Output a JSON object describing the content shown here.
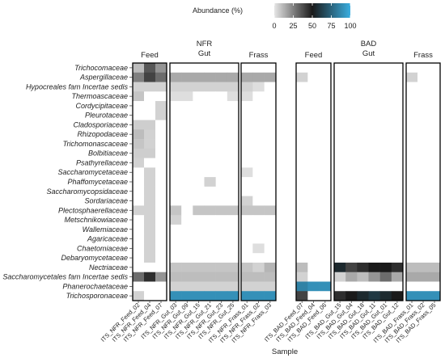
{
  "chart_data": {
    "type": "heatmap",
    "title": "",
    "xlabel": "Sample",
    "ylabel": "",
    "legend": {
      "title": "Abundance (%)",
      "ticks": [
        0,
        25,
        50,
        75,
        100
      ],
      "range": [
        0,
        100
      ],
      "colors": {
        "low": "#e6e6e6",
        "mid": "#1a1a1a",
        "high": "#3aaee0"
      },
      "placement": "top"
    },
    "rows": [
      "Trichocomaceae",
      "Aspergillaceae",
      "Hypocreales fam Incertae sedis",
      "Thermoascaceae",
      "Cordycipitaceae",
      "Pleurotaceae",
      "Cladosporiaceae",
      "Rhizopodaceae",
      "Trichomonascaceae",
      "Bolbitiaceae",
      "Psathyrellaceae",
      "Saccharomycetaceae",
      "Phaffomycetaceae",
      "Saccharomycopsidaceae",
      "Sordariaceae",
      "Plectosphaerellaceae",
      "Metschnikowiaceae",
      "Wallemiaceae",
      "Agaricaceae",
      "Chaetomiaceae",
      "Debaryomycetaceae",
      "Nectriaceae",
      "Saccharomycetales fam Incertae sedis",
      "Phanerochaetaceae",
      "Trichosporonaceae"
    ],
    "groups": [
      {
        "label": "BAD",
        "sublabel": "",
        "panel_ids": [
          "bad_feed",
          "bad_gut",
          "bad_frass"
        ]
      },
      {
        "label": "NFR",
        "sublabel": "",
        "panel_ids": [
          "nfr_feed",
          "nfr_gut",
          "nfr_frass"
        ]
      }
    ],
    "panels": [
      {
        "id": "nfr_feed",
        "strip": "Feed",
        "group": "NFR",
        "columns": [
          "ITS_NFR_Feed_02",
          "ITS_NFR_Feed_04",
          "ITS_NFR_Feed_07"
        ],
        "values": [
          [
            10,
            35,
            20
          ],
          [
            25,
            40,
            30
          ],
          [
            5,
            5,
            5
          ],
          [
            8,
            0,
            0
          ],
          [
            0,
            0,
            5
          ],
          [
            0,
            0,
            5
          ],
          [
            6,
            6,
            0
          ],
          [
            10,
            5,
            0
          ],
          [
            8,
            5,
            0
          ],
          [
            6,
            6,
            0
          ],
          [
            5,
            0,
            0
          ],
          [
            0,
            5,
            0
          ],
          [
            0,
            5,
            0
          ],
          [
            0,
            5,
            0
          ],
          [
            0,
            5,
            0
          ],
          [
            5,
            5,
            0
          ],
          [
            0,
            5,
            0
          ],
          [
            0,
            5,
            0
          ],
          [
            0,
            5,
            0
          ],
          [
            0,
            5,
            0
          ],
          [
            0,
            5,
            0
          ],
          [
            0,
            0,
            0
          ],
          [
            30,
            45,
            20
          ],
          [
            0,
            0,
            0
          ],
          [
            5,
            0,
            0
          ]
        ]
      },
      {
        "id": "nfr_gut",
        "strip": "NFR\nGut",
        "columns": [
          "ITS_NFR_Gut_03",
          "ITS_NFR_Gut_09",
          "ITS_NFR_Gut_15",
          "ITS_NFR_Gut_21",
          "ITS_NFR_Gut_23",
          "ITS_NFR_Gut_25"
        ],
        "values": [
          [
            0,
            0,
            0,
            0,
            0,
            0
          ],
          [
            15,
            15,
            15,
            15,
            15,
            15
          ],
          [
            5,
            5,
            5,
            5,
            5,
            5
          ],
          [
            2,
            2,
            0,
            0,
            0,
            2
          ],
          [
            0,
            0,
            0,
            0,
            0,
            0
          ],
          [
            0,
            0,
            0,
            0,
            0,
            0
          ],
          [
            0,
            0,
            0,
            0,
            0,
            0
          ],
          [
            0,
            0,
            0,
            0,
            0,
            0
          ],
          [
            0,
            0,
            0,
            0,
            0,
            0
          ],
          [
            0,
            0,
            0,
            0,
            0,
            0
          ],
          [
            0,
            0,
            0,
            0,
            0,
            0
          ],
          [
            0,
            0,
            0,
            0,
            0,
            0
          ],
          [
            0,
            0,
            0,
            5,
            0,
            0
          ],
          [
            0,
            0,
            0,
            0,
            0,
            0
          ],
          [
            0,
            0,
            0,
            0,
            0,
            0
          ],
          [
            8,
            0,
            8,
            8,
            8,
            8
          ],
          [
            5,
            0,
            0,
            0,
            0,
            0
          ],
          [
            0,
            0,
            0,
            0,
            0,
            0
          ],
          [
            0,
            0,
            0,
            0,
            0,
            0
          ],
          [
            0,
            0,
            0,
            0,
            0,
            0
          ],
          [
            0,
            0,
            0,
            0,
            0,
            0
          ],
          [
            8,
            8,
            8,
            8,
            8,
            8
          ],
          [
            10,
            10,
            10,
            10,
            10,
            10
          ],
          [
            5,
            5,
            5,
            5,
            5,
            5
          ],
          [
            90,
            90,
            90,
            90,
            90,
            90
          ]
        ]
      },
      {
        "id": "nfr_frass",
        "strip": "Frass",
        "group": "NFR",
        "columns": [
          "ITS_NFR_Frass_01",
          "ITS_NFR_Frass_02",
          "ITS_NFR_Frass_03"
        ],
        "values": [
          [
            0,
            0,
            0
          ],
          [
            15,
            15,
            15
          ],
          [
            5,
            2,
            0
          ],
          [
            2,
            0,
            0
          ],
          [
            0,
            0,
            0
          ],
          [
            0,
            0,
            0
          ],
          [
            0,
            0,
            0
          ],
          [
            0,
            0,
            0
          ],
          [
            0,
            0,
            0
          ],
          [
            0,
            0,
            0
          ],
          [
            0,
            0,
            0
          ],
          [
            2,
            0,
            0
          ],
          [
            0,
            0,
            0
          ],
          [
            0,
            0,
            0
          ],
          [
            5,
            0,
            0
          ],
          [
            8,
            8,
            8
          ],
          [
            0,
            0,
            0
          ],
          [
            0,
            0,
            0
          ],
          [
            0,
            0,
            0
          ],
          [
            0,
            2,
            0
          ],
          [
            0,
            0,
            0
          ],
          [
            8,
            5,
            12
          ],
          [
            10,
            10,
            10
          ],
          [
            5,
            5,
            5
          ],
          [
            90,
            90,
            90
          ]
        ]
      },
      {
        "id": "bad_feed",
        "strip": "Feed",
        "group": "BAD",
        "columns": [
          "ITS_BAD_Feed_07",
          "ITS_BAD_Feed_04",
          "ITS_BAD_Feed_06"
        ],
        "values": [
          [
            0,
            0,
            0
          ],
          [
            5,
            0,
            0
          ],
          [
            0,
            0,
            0
          ],
          [
            0,
            0,
            0
          ],
          [
            0,
            0,
            0
          ],
          [
            0,
            0,
            0
          ],
          [
            0,
            0,
            0
          ],
          [
            0,
            0,
            0
          ],
          [
            0,
            0,
            0
          ],
          [
            0,
            0,
            0
          ],
          [
            0,
            0,
            0
          ],
          [
            0,
            0,
            0
          ],
          [
            0,
            0,
            0
          ],
          [
            0,
            0,
            0
          ],
          [
            0,
            0,
            0
          ],
          [
            0,
            0,
            0
          ],
          [
            0,
            0,
            0
          ],
          [
            0,
            0,
            0
          ],
          [
            0,
            0,
            0
          ],
          [
            0,
            0,
            0
          ],
          [
            0,
            0,
            0
          ],
          [
            10,
            0,
            0
          ],
          [
            5,
            0,
            0
          ],
          [
            85,
            90,
            90
          ],
          [
            40,
            0,
            0
          ]
        ]
      },
      {
        "id": "bad_gut",
        "strip": "BAD\nGut",
        "columns": [
          "ITS_BAD_Gut_15",
          "ITS_BAD_Gut_04",
          "ITS_BAD_Gut_18",
          "ITS_BAD_Gut_11",
          "ITS_BAD_Gut_01",
          "ITS_BAD_Gut_12"
        ],
        "values": [
          [
            0,
            0,
            0,
            0,
            0,
            0
          ],
          [
            0,
            0,
            0,
            0,
            0,
            0
          ],
          [
            0,
            0,
            0,
            0,
            0,
            0
          ],
          [
            0,
            0,
            0,
            0,
            0,
            0
          ],
          [
            0,
            0,
            0,
            0,
            0,
            0
          ],
          [
            0,
            0,
            0,
            0,
            0,
            0
          ],
          [
            0,
            0,
            0,
            0,
            0,
            0
          ],
          [
            0,
            0,
            0,
            0,
            0,
            0
          ],
          [
            0,
            0,
            0,
            0,
            0,
            0
          ],
          [
            0,
            0,
            0,
            0,
            0,
            0
          ],
          [
            0,
            0,
            0,
            0,
            0,
            0
          ],
          [
            0,
            0,
            0,
            0,
            0,
            0
          ],
          [
            0,
            0,
            0,
            0,
            0,
            0
          ],
          [
            0,
            0,
            0,
            0,
            0,
            0
          ],
          [
            0,
            0,
            0,
            0,
            0,
            0
          ],
          [
            0,
            0,
            0,
            0,
            0,
            0
          ],
          [
            0,
            0,
            0,
            0,
            0,
            0
          ],
          [
            0,
            0,
            0,
            0,
            0,
            0
          ],
          [
            0,
            0,
            0,
            0,
            0,
            0
          ],
          [
            0,
            0,
            0,
            0,
            0,
            0
          ],
          [
            0,
            0,
            0,
            0,
            0,
            0
          ],
          [
            55,
            40,
            45,
            50,
            50,
            45
          ],
          [
            5,
            15,
            10,
            20,
            30,
            15
          ],
          [
            0,
            0,
            0,
            0,
            0,
            0
          ],
          [
            45,
            50,
            55,
            60,
            55,
            50
          ]
        ]
      },
      {
        "id": "bad_frass",
        "strip": "Frass",
        "group": "BAD",
        "columns": [
          "ITS_BAD_Frass_01",
          "ITS_BAD_Frass_02",
          "ITS_BAD_Frass_05"
        ],
        "values": [
          [
            0,
            0,
            0
          ],
          [
            5,
            0,
            0
          ],
          [
            0,
            0,
            0
          ],
          [
            0,
            0,
            0
          ],
          [
            0,
            0,
            0
          ],
          [
            0,
            0,
            0
          ],
          [
            0,
            0,
            0
          ],
          [
            0,
            0,
            0
          ],
          [
            0,
            0,
            0
          ],
          [
            0,
            0,
            0
          ],
          [
            0,
            0,
            0
          ],
          [
            0,
            0,
            0
          ],
          [
            0,
            0,
            0
          ],
          [
            0,
            0,
            0
          ],
          [
            0,
            0,
            0
          ],
          [
            0,
            0,
            0
          ],
          [
            0,
            0,
            0
          ],
          [
            0,
            0,
            0
          ],
          [
            0,
            0,
            0
          ],
          [
            0,
            0,
            0
          ],
          [
            0,
            0,
            0
          ],
          [
            10,
            10,
            10
          ],
          [
            15,
            15,
            15
          ],
          [
            0,
            0,
            0
          ],
          [
            90,
            90,
            90
          ]
        ]
      }
    ]
  }
}
